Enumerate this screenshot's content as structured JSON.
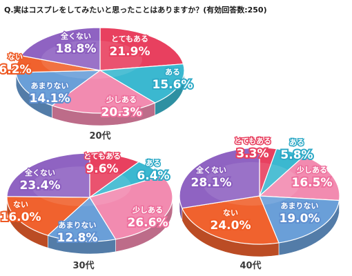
{
  "question": "Q.実はコスプレをしてみたいと思ったことはありますか？(有効回答数:250)",
  "chart_data": [
    {
      "type": "pie",
      "title": "20代",
      "categories": [
        "とてもある",
        "ある",
        "少しある",
        "あまりない",
        "ない",
        "全くない"
      ],
      "values": [
        21.9,
        15.6,
        20.3,
        14.1,
        6.2,
        18.8
      ],
      "labels": [
        "21.9%",
        "15.6%",
        "20.3%",
        "14.1%",
        "6.2%",
        "18.8%"
      ]
    },
    {
      "type": "pie",
      "title": "30代",
      "categories": [
        "とてもある",
        "ある",
        "少しある",
        "あまりない",
        "ない",
        "全くない"
      ],
      "values": [
        9.6,
        6.4,
        26.6,
        12.8,
        16.0,
        23.4
      ],
      "labels": [
        "9.6%",
        "6.4%",
        "26.6%",
        "12.8%",
        "16.0%",
        "23.4%"
      ]
    },
    {
      "type": "pie",
      "title": "40代",
      "categories": [
        "とてもある",
        "ある",
        "少しある",
        "あまりない",
        "ない",
        "全くない"
      ],
      "values": [
        3.3,
        5.8,
        16.5,
        19.0,
        24.0,
        28.1
      ],
      "labels": [
        "3.3%",
        "5.8%",
        "16.5%",
        "19.0%",
        "24.0%",
        "28.1%"
      ]
    }
  ],
  "colors": {
    "とてもある": "#e8405f",
    "ある": "#3bb8d0",
    "少しある": "#f28bb0",
    "あまりない": "#6a9fd8",
    "ない": "#f0622e",
    "全くない": "#8f63c2"
  },
  "label_colors": {
    "とてもある": "#e8405f",
    "ある": "#2ea9c6",
    "少しある": "#ee6f9c",
    "あまりない": "#5f8fd0",
    "ない": "#ee5a24",
    "全くない": "#8a5cbe"
  }
}
